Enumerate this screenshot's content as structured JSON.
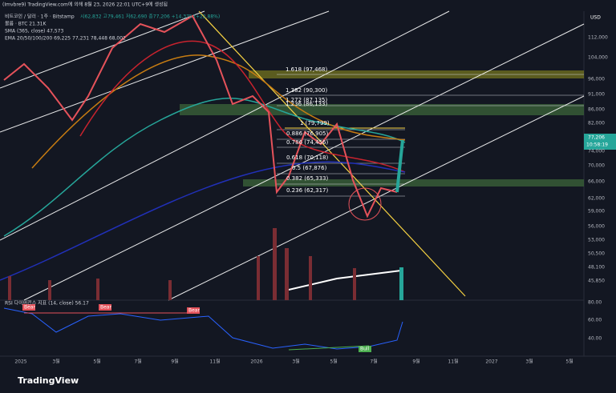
{
  "header": {
    "caption": "(Imvbre9) TradingView.com에 의해 8월 23, 2026 22:01 UTC+9에 생성됨"
  },
  "legend": {
    "symbol": "비트코인 / 달러 · 1주 · Bitstamp",
    "ohlc": "시62,832 고79,461 저62,690 종77,206 +14,375 (+22.88%)",
    "volume": "볼륨 · BTC 21.31K",
    "sma": "SMA (365, close) 47,573",
    "ema": "EMA 20/50/100/200 69,225 77,231 78,448 68,002"
  },
  "price_axis": {
    "currency": "USD",
    "labels": [
      "112,000",
      "104,000",
      "96,000",
      "91,000",
      "86,000",
      "82,000",
      "74,000",
      "70,000",
      "66,000",
      "62,000",
      "59,000",
      "56,000",
      "53,000",
      "50,500",
      "48,100",
      "45,850"
    ],
    "last_price": "77,206",
    "countdown": "10:58:19"
  },
  "fib_levels": [
    "1.618 (97,468)",
    "1.382 (90,300)",
    "1.272 (87,135)",
    "1.236 (86,133)",
    "1 (79,799)",
    "0.886 (76,905)",
    "0.786 (74,456)",
    "0.618 (70,118)",
    "0.5 (67,876)",
    "0.382 (65,333)",
    "0.236 (62,317)"
  ],
  "rsi": {
    "title": "RSI 다이버전스 지표 (14, close) 56.17",
    "axis": [
      "80.00",
      "60.00",
      "40.00"
    ],
    "tags": [
      "Bear",
      "Bear",
      "Bear",
      "Bull"
    ]
  },
  "time_axis": [
    "2025",
    "3월",
    "5월",
    "7월",
    "9월",
    "11월",
    "2026",
    "3월",
    "5월",
    "7월",
    "9월",
    "11월",
    "2027",
    "3월",
    "5월"
  ],
  "footer": {
    "logo": "TradingView"
  }
}
